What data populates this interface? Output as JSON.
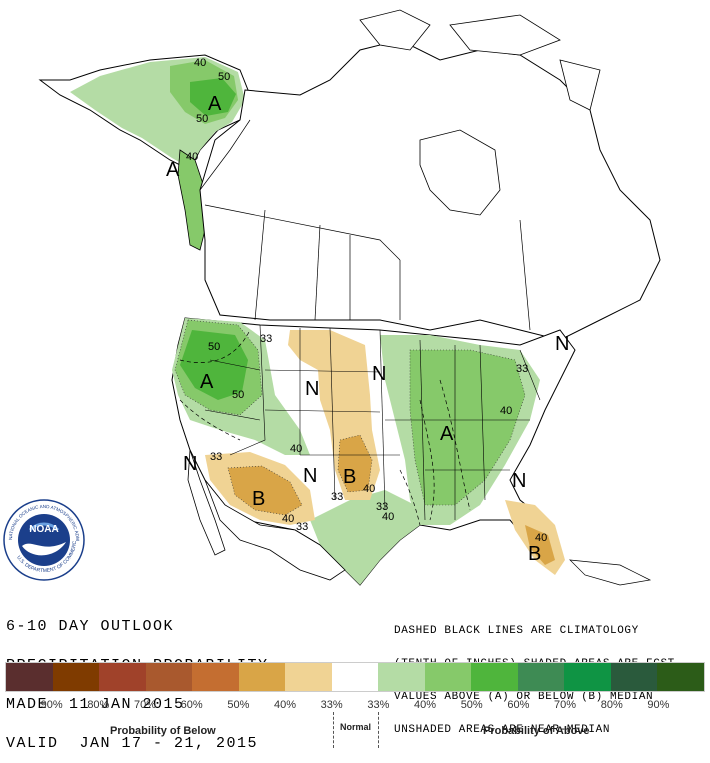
{
  "outlook": {
    "line1": "6-10 DAY OUTLOOK",
    "line2": "PRECIPITATION PROBABILITY",
    "line3": "MADE  11 JAN 2015",
    "line4": "VALID  JAN 17 - 21, 2015"
  },
  "notes": {
    "line1": "DASHED BLACK LINES ARE CLIMATOLOGY",
    "line2": "(TENTH OF INCHES) SHADED AREAS ARE FCST",
    "line3": "VALUES ABOVE (A) OR BELOW (B) MEDIAN",
    "line4": "UNSHADED AREAS ARE NEAR-MEDIAN"
  },
  "logo": {
    "text": "NOAA",
    "ring_top": "NATIONAL OCEANIC AND ATMOSPHERIC ADMINISTRATION",
    "ring_bottom": "U.S. DEPARTMENT OF COMMERCE"
  },
  "map_labels": {
    "a_alaska": "A",
    "a_panhandle": "A",
    "a_northwest": "A",
    "a_east": "A",
    "b_southwest": "B",
    "b_plains": "B",
    "b_florida": "B",
    "n_northern_plains_a": "N",
    "n_northern_plains_b": "N",
    "n_southwest": "N",
    "n_south_plains": "N",
    "n_maine": "N",
    "n_southeast": "N",
    "c40_ak": "40",
    "c50_ak_top": "50",
    "c50_ak": "50",
    "c40_ak_south": "40",
    "c50_nw": "50",
    "c50_nw2": "50",
    "c33_nw": "33",
    "c40_nw": "40",
    "c33_sw": "33",
    "c40_sw": "40",
    "c33_sw2": "33",
    "c33_sp": "33",
    "c40_sp": "40",
    "c33_tx": "33",
    "c40_tx": "40",
    "c33_east": "33",
    "c40_east": "40",
    "c40_fl": "40"
  },
  "legend": {
    "colors": [
      "#5a2e2e",
      "#7f3b00",
      "#a0422a",
      "#a9592e",
      "#c46e31",
      "#d9a547",
      "#f0d394",
      "#ffffff",
      "#b4dca5",
      "#86c96a",
      "#4fb53c",
      "#3e8b54",
      "#0f9444",
      "#2a5a3c",
      "#2c5c18"
    ],
    "labels": [
      "90%",
      "80%",
      "70%",
      "60%",
      "50%",
      "40%",
      "33%",
      "33%",
      "40%",
      "50%",
      "60%",
      "70%",
      "80%",
      "90%"
    ],
    "below_caption": "Probability of Below",
    "normal_caption": "Normal",
    "above_caption": "Probability of Above"
  }
}
